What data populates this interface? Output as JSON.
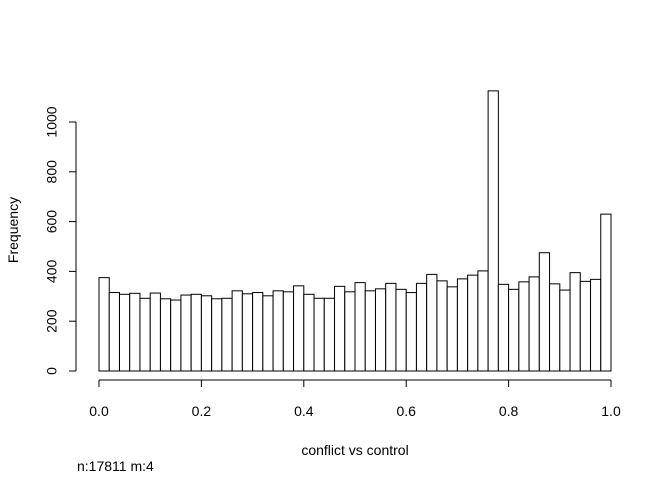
{
  "chart_data": {
    "type": "histogram",
    "title": "",
    "xlabel": "conflict vs control",
    "ylabel": "Frequency",
    "xlim": [
      0.0,
      1.0
    ],
    "ylim": [
      0,
      1150
    ],
    "x_ticks": [
      0.0,
      0.2,
      0.4,
      0.6,
      0.8,
      1.0
    ],
    "x_tick_labels": [
      "0.0",
      "0.2",
      "0.4",
      "0.6",
      "0.8",
      "1.0"
    ],
    "y_ticks": [
      0,
      200,
      400,
      600,
      800,
      1000
    ],
    "y_tick_labels": [
      "0",
      "200",
      "400",
      "600",
      "800",
      "1000"
    ],
    "grid": false,
    "bin_width": 0.02,
    "bin_start": 0.0,
    "values": [
      375,
      315,
      308,
      312,
      292,
      313,
      290,
      285,
      305,
      308,
      302,
      290,
      292,
      322,
      310,
      315,
      302,
      322,
      318,
      342,
      308,
      292,
      292,
      340,
      318,
      355,
      322,
      330,
      352,
      328,
      315,
      352,
      388,
      362,
      338,
      370,
      385,
      402,
      1125,
      348,
      328,
      358,
      378,
      475,
      350,
      325,
      395,
      360,
      368,
      630
    ],
    "bar_fill": "#ffffff",
    "bar_stroke": "#000000"
  },
  "footnote": "n:17811 m:4"
}
